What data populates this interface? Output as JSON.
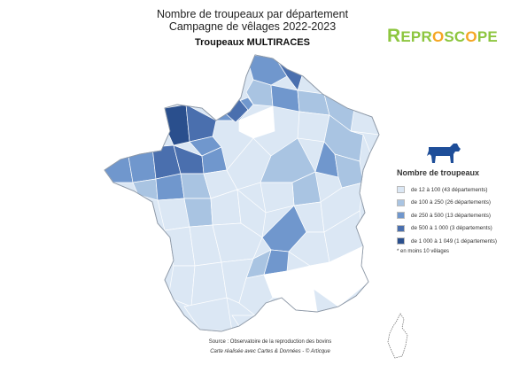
{
  "title": {
    "line1": "Nombre de troupeaux par département",
    "line2": "Campagne de vêlages 2022-2023"
  },
  "subtitle": "Troupeaux MULTIRACES",
  "logo": {
    "text_first": "R",
    "text_part1": "EPR",
    "text_o_mark": "O",
    "text_part2": "SC",
    "text_o_mark2": "O",
    "text_part3": "PE",
    "color": "#8dc63f",
    "accent": "#f5a623"
  },
  "legend": {
    "title": "Nombre de troupeaux",
    "items": [
      {
        "label": "de 12 à 100  (43 départements)",
        "color": "#dbe7f4"
      },
      {
        "label": "de 100 à 250  (26 départements)",
        "color": "#a9c4e2"
      },
      {
        "label": "de 250 à 500  (13 départements)",
        "color": "#7097cd"
      },
      {
        "label": "de 500 à 1 000  (3 départements)",
        "color": "#4a6fae"
      },
      {
        "label": "de 1 000 à 1 049  (1 départements)",
        "color": "#2a4f8d"
      }
    ],
    "note": "* en moins 10 vêlages",
    "icon": "cow-icon"
  },
  "source": {
    "line1": "Source : Observatoire de la reproduction des bovins",
    "line2": "Carte réalisée avec Cartes & Données - © Articque"
  },
  "colors": {
    "empty": "#ffffff",
    "border": "#9aa5b3",
    "cow": "#1e4e99"
  }
}
